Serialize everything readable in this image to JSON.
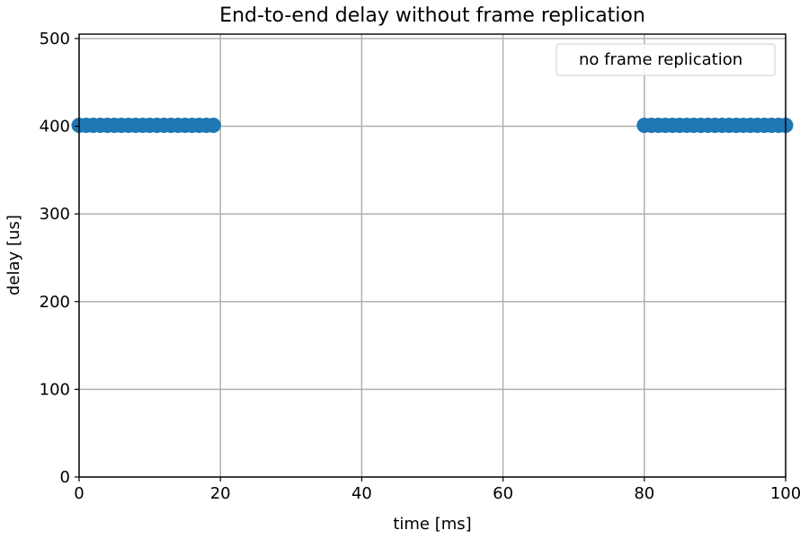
{
  "chart_data": {
    "type": "scatter",
    "title": "End-to-end delay without frame replication",
    "xlabel": "time [ms]",
    "ylabel": "delay [us]",
    "xlim": [
      0,
      100
    ],
    "ylim": [
      0,
      505
    ],
    "xticks": [
      0,
      20,
      40,
      60,
      80,
      100
    ],
    "yticks": [
      0,
      100,
      200,
      300,
      400,
      500
    ],
    "grid": true,
    "legend_position": "top-right",
    "series": [
      {
        "name": "no frame replication",
        "color": "#1f77b4",
        "x": [
          0,
          1,
          2,
          3,
          4,
          5,
          6,
          7,
          8,
          9,
          10,
          11,
          12,
          13,
          14,
          15,
          16,
          17,
          18,
          19,
          80,
          81,
          82,
          83,
          84,
          85,
          86,
          87,
          88,
          89,
          90,
          91,
          92,
          93,
          94,
          95,
          96,
          97,
          98,
          99,
          100
        ],
        "y": [
          401,
          401,
          401,
          401,
          401,
          401,
          401,
          401,
          401,
          401,
          401,
          401,
          401,
          401,
          401,
          401,
          401,
          401,
          401,
          401,
          401,
          401,
          401,
          401,
          401,
          401,
          401,
          401,
          401,
          401,
          401,
          401,
          401,
          401,
          401,
          401,
          401,
          401,
          401,
          401,
          401
        ]
      }
    ]
  }
}
